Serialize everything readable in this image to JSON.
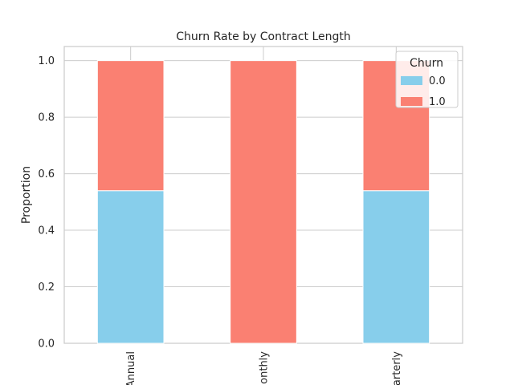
{
  "chart_data": {
    "type": "bar",
    "stacked": true,
    "title": "Churn Rate by Contract Length",
    "xlabel": "",
    "ylabel": "Proportion",
    "categories": [
      "Annual",
      "Monthly",
      "Quarterly"
    ],
    "series": [
      {
        "name": "0.0",
        "values": [
          0.54,
          0.0,
          0.54
        ],
        "color": "#87CEEB"
      },
      {
        "name": "1.0",
        "values": [
          0.46,
          1.0,
          0.46
        ],
        "color": "#FA8072"
      }
    ],
    "ylim": [
      0,
      1.05
    ],
    "yticks": [
      "0.0",
      "0.2",
      "0.4",
      "0.6",
      "0.8",
      "1.0"
    ],
    "grid": true,
    "legend": {
      "title": "Churn",
      "placement": "top-right"
    }
  }
}
